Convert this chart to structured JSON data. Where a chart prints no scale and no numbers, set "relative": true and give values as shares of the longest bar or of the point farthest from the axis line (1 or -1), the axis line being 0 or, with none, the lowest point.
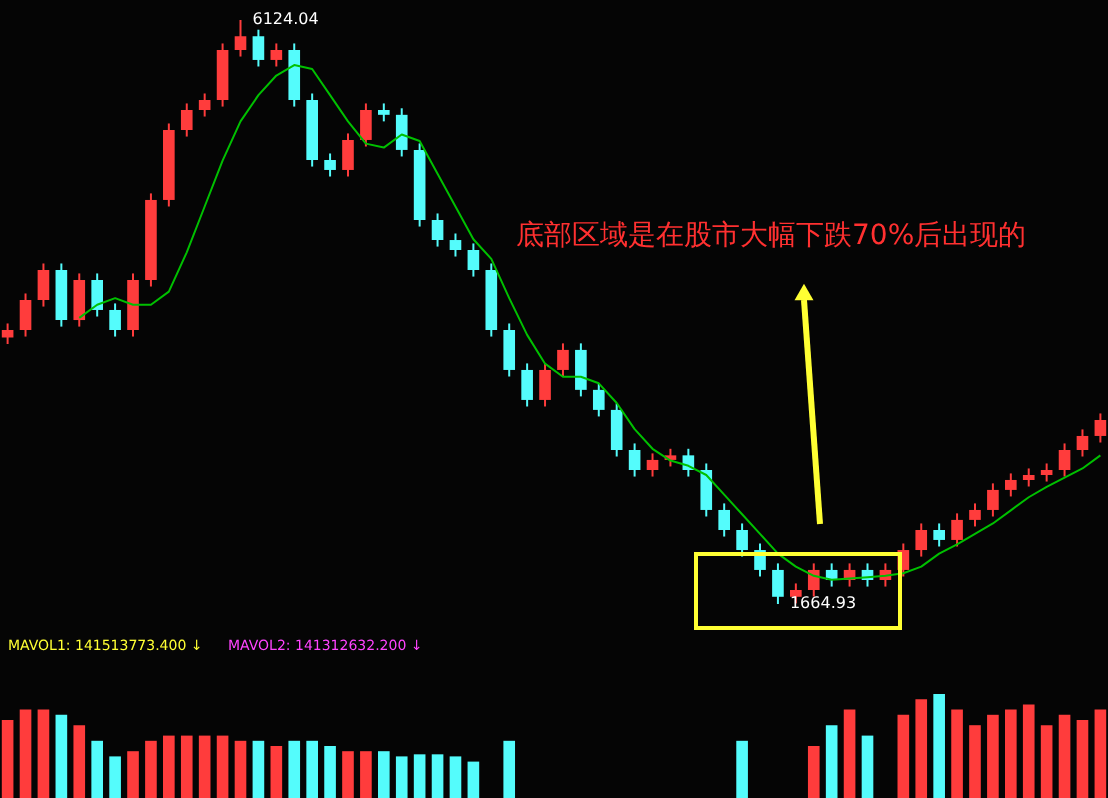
{
  "chart_data": [
    {
      "type": "candlestick",
      "categories": [
        null,
        null,
        null,
        null,
        null,
        null,
        null,
        null,
        null,
        null,
        null,
        null,
        null,
        null,
        null,
        null,
        null,
        null,
        null,
        null,
        null,
        null,
        null,
        null,
        null,
        null,
        null,
        null,
        null,
        null,
        null,
        null,
        null,
        null,
        null,
        null,
        null,
        null,
        null,
        null,
        null,
        null,
        null,
        null,
        null,
        null,
        null,
        null,
        null,
        null,
        null,
        null,
        null,
        null,
        null,
        null,
        null,
        null,
        null,
        null,
        null,
        null
      ],
      "ohlc": [
        [
          3700,
          3807,
          3650,
          3757
        ],
        [
          3757,
          4036,
          3707,
          3986
        ],
        [
          3986,
          4265,
          3936,
          4215
        ],
        [
          4215,
          4265,
          3783,
          3833
        ],
        [
          3833,
          4189,
          3783,
          4139
        ],
        [
          4139,
          4189,
          3860,
          3910
        ],
        [
          3910,
          3960,
          3707,
          3757
        ],
        [
          3757,
          4189,
          3707,
          4139
        ],
        [
          4139,
          4800,
          4089,
          4750
        ],
        [
          4750,
          5334,
          4700,
          5284
        ],
        [
          5284,
          5487,
          5234,
          5437
        ],
        [
          5437,
          5563,
          5387,
          5513
        ],
        [
          5513,
          5945,
          5463,
          5895
        ],
        [
          5895,
          6124.04,
          5845,
          6000
        ],
        [
          6000,
          6050,
          5769,
          5819
        ],
        [
          5819,
          5945,
          5769,
          5895
        ],
        [
          5895,
          5945,
          5463,
          5513
        ],
        [
          5513,
          5563,
          5005,
          5055
        ],
        [
          5055,
          5105,
          4929,
          4979
        ],
        [
          4979,
          5258,
          4929,
          5208
        ],
        [
          5208,
          5487,
          5158,
          5437
        ],
        [
          5437,
          5487,
          5350,
          5400
        ],
        [
          5400,
          5450,
          5082,
          5132
        ],
        [
          5132,
          5182,
          4547,
          4597
        ],
        [
          4597,
          4647,
          4394,
          4444
        ],
        [
          4444,
          4494,
          4318,
          4368
        ],
        [
          4368,
          4418,
          4165,
          4215
        ],
        [
          4215,
          4265,
          3707,
          3757
        ],
        [
          3757,
          3807,
          3402,
          3452
        ],
        [
          3452,
          3502,
          3173,
          3223
        ],
        [
          3223,
          3502,
          3173,
          3452
        ],
        [
          3452,
          3655,
          3402,
          3605
        ],
        [
          3605,
          3655,
          3250,
          3300
        ],
        [
          3300,
          3350,
          3097,
          3147
        ],
        [
          3147,
          3197,
          2791,
          2841
        ],
        [
          2841,
          2891,
          2638,
          2688
        ],
        [
          2688,
          2815,
          2638,
          2765
        ],
        [
          2765,
          2850,
          2715,
          2800
        ],
        [
          2800,
          2850,
          2638,
          2688
        ],
        [
          2688,
          2738,
          2333,
          2383
        ],
        [
          2383,
          2433,
          2180,
          2230
        ],
        [
          2230,
          2280,
          2027,
          2077
        ],
        [
          2077,
          2127,
          1875,
          1925
        ],
        [
          1925,
          1975,
          1664.93,
          1720
        ],
        [
          1720,
          1822,
          1670,
          1772
        ],
        [
          1772,
          1975,
          1722,
          1925
        ],
        [
          1925,
          1975,
          1798,
          1848
        ],
        [
          1848,
          1975,
          1798,
          1925
        ],
        [
          1925,
          1975,
          1798,
          1848
        ],
        [
          1848,
          1975,
          1798,
          1925
        ],
        [
          1925,
          2127,
          1875,
          2077
        ],
        [
          2077,
          2280,
          2027,
          2230
        ],
        [
          2230,
          2280,
          2104,
          2154
        ],
        [
          2154,
          2357,
          2104,
          2307
        ],
        [
          2307,
          2433,
          2257,
          2383
        ],
        [
          2383,
          2586,
          2333,
          2536
        ],
        [
          2536,
          2662,
          2486,
          2612
        ],
        [
          2612,
          2700,
          2562,
          2650
        ],
        [
          2650,
          2738,
          2600,
          2688
        ],
        [
          2688,
          2891,
          2638,
          2841
        ],
        [
          2841,
          2998,
          2791,
          2948
        ],
        [
          2948,
          3120,
          2898,
          3070
        ]
      ],
      "colors": [
        "#ff3c3c",
        "#ff3c3c",
        "#ff3c3c",
        "#54fcfc",
        "#ff3c3c",
        "#54fcfc",
        "#54fcfc",
        "#ff3c3c",
        "#ff3c3c",
        "#ff3c3c",
        "#ff3c3c",
        "#ff3c3c",
        "#ff3c3c",
        "#ff3c3c",
        "#54fcfc",
        "#ff3c3c",
        "#54fcfc",
        "#54fcfc",
        "#54fcfc",
        "#ff3c3c",
        "#ff3c3c",
        "#54fcfc",
        "#54fcfc",
        "#54fcfc",
        "#54fcfc",
        "#54fcfc",
        "#54fcfc",
        "#54fcfc",
        "#54fcfc",
        "#54fcfc",
        "#ff3c3c",
        "#ff3c3c",
        "#54fcfc",
        "#54fcfc",
        "#54fcfc",
        "#54fcfc",
        "#ff3c3c",
        "#ff3c3c",
        "#54fcfc",
        "#54fcfc",
        "#54fcfc",
        "#54fcfc",
        "#54fcfc",
        "#54fcfc",
        "#ff3c3c",
        "#ff3c3c",
        "#54fcfc",
        "#ff3c3c",
        "#54fcfc",
        "#ff3c3c",
        "#ff3c3c",
        "#ff3c3c",
        "#54fcfc",
        "#ff3c3c",
        "#ff3c3c",
        "#ff3c3c",
        "#ff3c3c",
        "#ff3c3c",
        "#ff3c3c",
        "#ff3c3c",
        "#ff3c3c",
        "#ff3c3c"
      ],
      "series": [
        {
          "type": "line",
          "color": "#00c000",
          "values": [
            null,
            null,
            null,
            null,
            3850,
            3950,
            4000,
            3950,
            3950,
            4050,
            4350,
            4700,
            5050,
            5350,
            5550,
            5700,
            5780,
            5750,
            5550,
            5350,
            5180,
            5150,
            5250,
            5200,
            4950,
            4700,
            4450,
            4300,
            4000,
            3720,
            3500,
            3400,
            3400,
            3350,
            3200,
            3000,
            2850,
            2760,
            2720,
            2650,
            2500,
            2350,
            2200,
            2050,
            1950,
            1880,
            1850,
            1860,
            1870,
            1880,
            1900,
            1950,
            2050,
            2120,
            2200,
            2280,
            2380,
            2480,
            2560,
            2630,
            2700,
            2800
          ]
        }
      ],
      "annotations": [
        "底部区域是在股市大幅下跌70%后出现的",
        "6124.04",
        "1664.93"
      ]
    },
    {
      "type": "bar",
      "relative": true,
      "categories": [
        null,
        null,
        null,
        null,
        null,
        null,
        null,
        null,
        null,
        null,
        null,
        null,
        null,
        null,
        null,
        null,
        null,
        null,
        null,
        null,
        null,
        null,
        null,
        null,
        null,
        null,
        null,
        null,
        null,
        null,
        null,
        null,
        null,
        null,
        null,
        null,
        null,
        null,
        null,
        null,
        null,
        null,
        null,
        null,
        null,
        null,
        null,
        null,
        null,
        null,
        null,
        null,
        null,
        null,
        null,
        null,
        null,
        null,
        null,
        null,
        null,
        null
      ],
      "values": [
        0.75,
        0.85,
        0.85,
        0.8,
        0.7,
        0.55,
        0.4,
        0.45,
        0.55,
        0.6,
        0.6,
        0.6,
        0.6,
        0.55,
        0.55,
        0.5,
        0.55,
        0.55,
        0.5,
        0.45,
        0.45,
        0.45,
        0.4,
        0.42,
        0.42,
        0.4,
        0.35,
        null,
        0.55,
        null,
        null,
        null,
        null,
        null,
        null,
        null,
        null,
        null,
        null,
        null,
        null,
        0.55,
        null,
        null,
        null,
        0.5,
        0.7,
        0.85,
        0.6,
        null,
        0.8,
        0.95,
        1,
        0.85,
        0.7,
        0.8,
        0.85,
        0.9,
        0.7,
        0.8,
        0.75,
        0.85
      ],
      "colors": [
        "#ff3c3c",
        "#ff3c3c",
        "#ff3c3c",
        "#54fcfc",
        "#ff3c3c",
        "#54fcfc",
        "#54fcfc",
        "#ff3c3c",
        "#ff3c3c",
        "#ff3c3c",
        "#ff3c3c",
        "#ff3c3c",
        "#ff3c3c",
        "#ff3c3c",
        "#54fcfc",
        "#ff3c3c",
        "#54fcfc",
        "#54fcfc",
        "#54fcfc",
        "#ff3c3c",
        "#ff3c3c",
        "#54fcfc",
        "#54fcfc",
        "#54fcfc",
        "#54fcfc",
        "#54fcfc",
        "#54fcfc",
        "#54fcfc",
        "#54fcfc",
        "#54fcfc",
        "#ff3c3c",
        "#ff3c3c",
        "#54fcfc",
        "#54fcfc",
        "#54fcfc",
        "#54fcfc",
        "#ff3c3c",
        "#ff3c3c",
        "#54fcfc",
        "#54fcfc",
        "#54fcfc",
        "#54fcfc",
        "#54fcfc",
        "#54fcfc",
        "#ff3c3c",
        "#ff3c3c",
        "#54fcfc",
        "#ff3c3c",
        "#54fcfc",
        "#ff3c3c",
        "#ff3c3c",
        "#ff3c3c",
        "#54fcfc",
        "#ff3c3c",
        "#ff3c3c",
        "#ff3c3c",
        "#ff3c3c",
        "#ff3c3c",
        "#ff3c3c",
        "#ff3c3c",
        "#ff3c3c",
        "#ff3c3c"
      ],
      "annotations": [
        "MAVOL1: 141513773.400 ↓",
        "MAVOL2: 141312632.200 ↓"
      ]
    }
  ]
}
